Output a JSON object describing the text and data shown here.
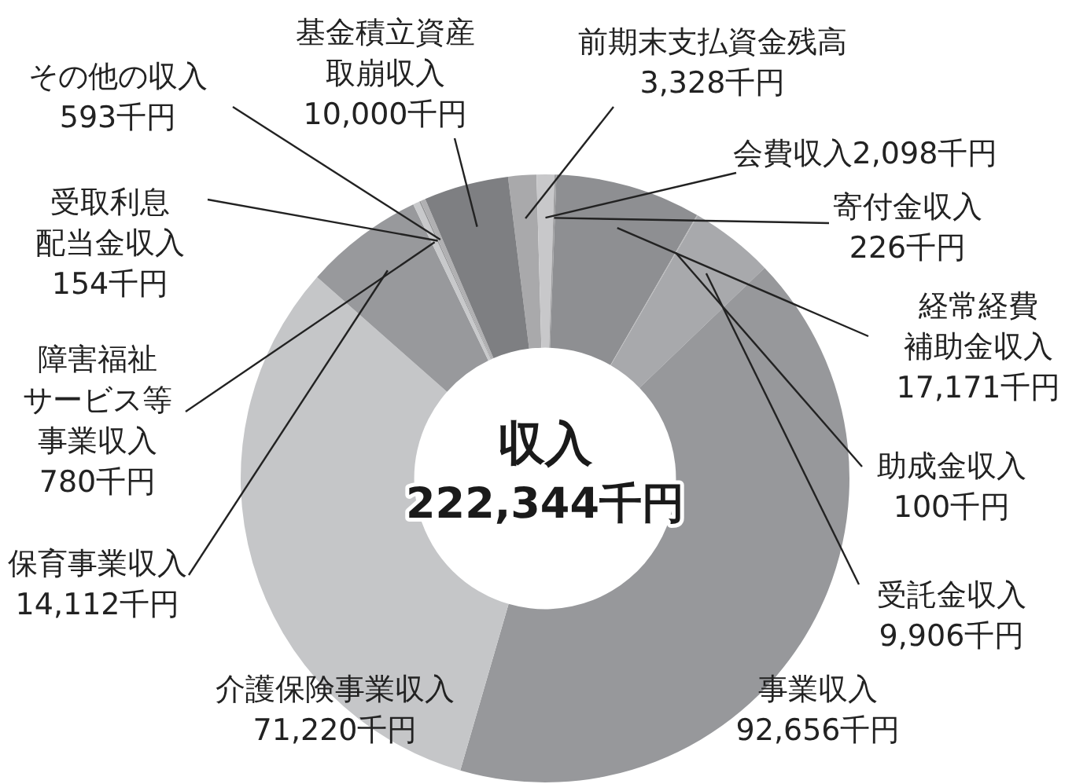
{
  "chart_data": {
    "type": "donut",
    "title": "収入",
    "subtitle": "222,344千円",
    "categories": [
      "前期末支払資金残高",
      "会費収入",
      "寄付金収入",
      "経常経費補助金収入",
      "助成金収入",
      "受託金収入",
      "事業収入",
      "介護保険事業収入",
      "保育事業収入",
      "障害福祉サービス等事業収入",
      "受取利息配当金収入",
      "その他の収入",
      "基金積立資産取崩収入"
    ],
    "values": [
      3328,
      2098,
      226,
      17171,
      100,
      9906,
      92656,
      71220,
      14112,
      780,
      154,
      593,
      10000
    ],
    "value_labels": [
      "3,328千円",
      "2,098千円",
      "226千円",
      "17,171千円",
      "100千円",
      "9,906千円",
      "92,656千円",
      "71,220千円",
      "14,112千円",
      "780千円",
      "154千円",
      "593千円",
      "10,000千円"
    ],
    "colors": [
      "#a9a9ab",
      "#c8c8ca",
      "#a0a0a2",
      "#8e8f92",
      "#b4b4b6",
      "#a8a9ac",
      "#97989b",
      "#c5c6c8",
      "#98999c",
      "#c8c9cb",
      "#909193",
      "#b0b0b2",
      "#7e7f82"
    ]
  }
}
